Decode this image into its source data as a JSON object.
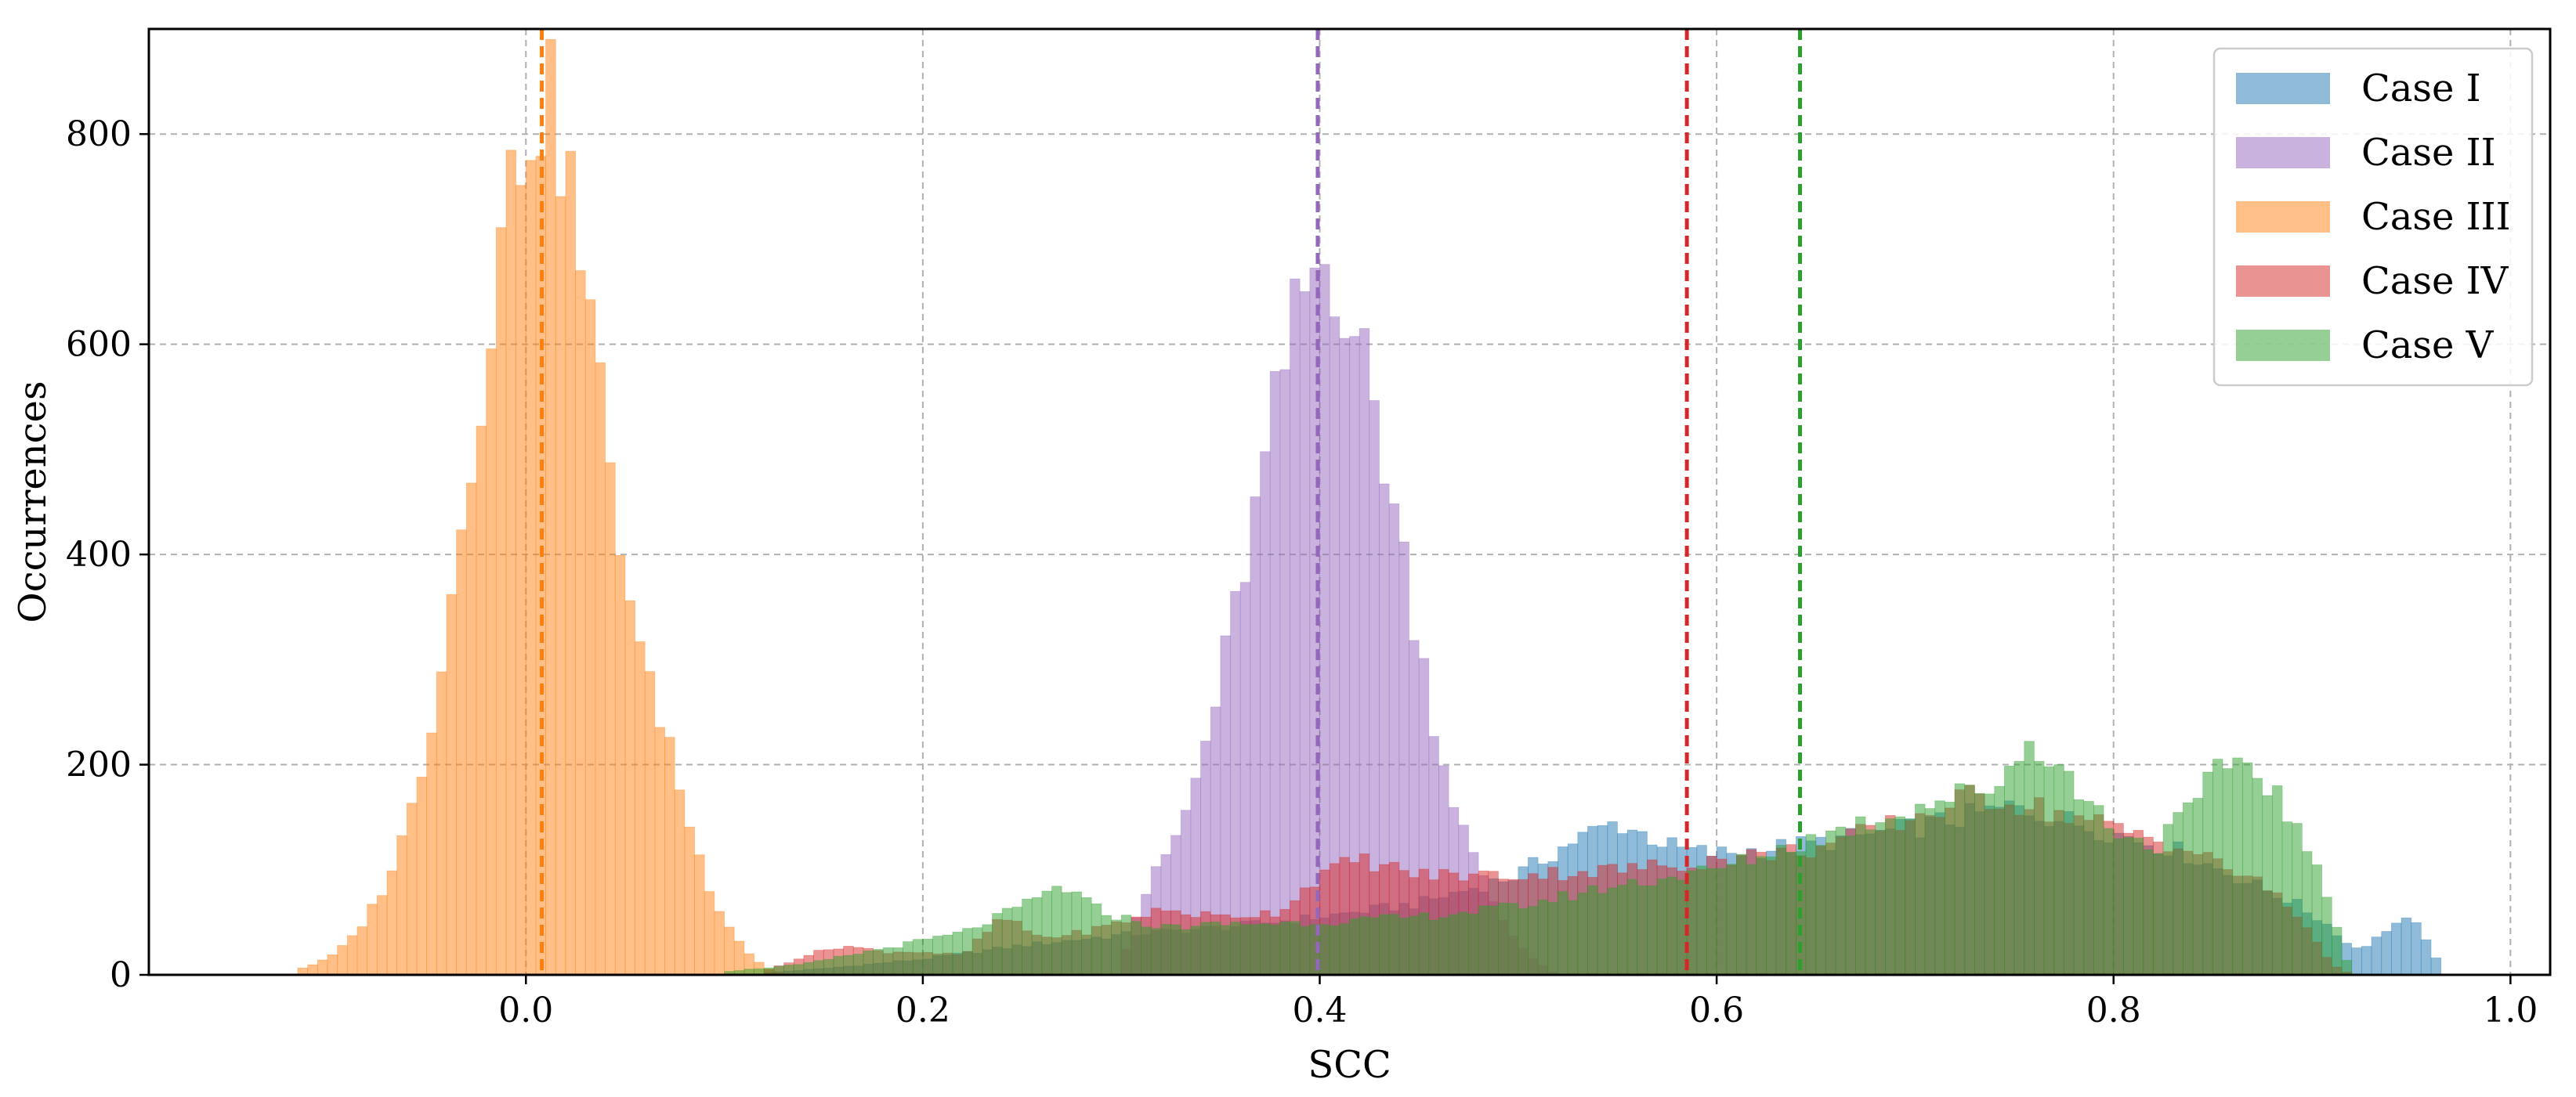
{
  "chart_data": {
    "type": "bar",
    "xlabel": "SCC",
    "ylabel": "Occurrences",
    "xlim": [
      -0.19,
      1.02
    ],
    "ylim": [
      0,
      900
    ],
    "xticks": [
      0.0,
      0.2,
      0.4,
      0.6,
      0.8,
      1.0
    ],
    "xtick_labels": [
      "0.0",
      "0.2",
      "0.4",
      "0.6",
      "0.8",
      "1.0"
    ],
    "yticks": [
      0,
      200,
      400,
      600,
      800
    ],
    "ytick_labels": [
      "0",
      "200",
      "400",
      "600",
      "800"
    ],
    "grid": true,
    "legend_position": "top-right",
    "bin_width": 0.005,
    "series": [
      {
        "name": "Case I",
        "color": "#1f77b4",
        "mean_line": null,
        "points": [
          [
            0.12,
            2
          ],
          [
            0.15,
            6
          ],
          [
            0.2,
            15
          ],
          [
            0.25,
            28
          ],
          [
            0.3,
            38
          ],
          [
            0.35,
            45
          ],
          [
            0.4,
            55
          ],
          [
            0.45,
            68
          ],
          [
            0.5,
            95
          ],
          [
            0.53,
            130
          ],
          [
            0.55,
            145
          ],
          [
            0.58,
            120
          ],
          [
            0.6,
            115
          ],
          [
            0.65,
            125
          ],
          [
            0.7,
            140
          ],
          [
            0.75,
            160
          ],
          [
            0.8,
            135
          ],
          [
            0.83,
            120
          ],
          [
            0.86,
            95
          ],
          [
            0.89,
            70
          ],
          [
            0.91,
            45
          ],
          [
            0.92,
            25
          ],
          [
            0.93,
            30
          ],
          [
            0.94,
            48
          ],
          [
            0.95,
            52
          ],
          [
            0.96,
            30
          ],
          [
            0.965,
            0
          ]
        ]
      },
      {
        "name": "Case II",
        "color": "#9467bd",
        "mean_line": 0.399,
        "points": [
          [
            0.3,
            12
          ],
          [
            0.31,
            70
          ],
          [
            0.32,
            105
          ],
          [
            0.33,
            140
          ],
          [
            0.34,
            200
          ],
          [
            0.35,
            280
          ],
          [
            0.36,
            370
          ],
          [
            0.37,
            460
          ],
          [
            0.38,
            560
          ],
          [
            0.39,
            640
          ],
          [
            0.4,
            680
          ],
          [
            0.41,
            665
          ],
          [
            0.42,
            600
          ],
          [
            0.43,
            520
          ],
          [
            0.44,
            420
          ],
          [
            0.45,
            320
          ],
          [
            0.46,
            220
          ],
          [
            0.47,
            150
          ],
          [
            0.48,
            100
          ],
          [
            0.49,
            60
          ],
          [
            0.5,
            30
          ],
          [
            0.51,
            12
          ],
          [
            0.52,
            0
          ]
        ]
      },
      {
        "name": "Case III",
        "color": "#ff7f0e",
        "mean_line": 0.008,
        "points": [
          [
            -0.115,
            5
          ],
          [
            -0.1,
            15
          ],
          [
            -0.09,
            30
          ],
          [
            -0.08,
            55
          ],
          [
            -0.07,
            90
          ],
          [
            -0.06,
            140
          ],
          [
            -0.05,
            220
          ],
          [
            -0.04,
            330
          ],
          [
            -0.03,
            460
          ],
          [
            -0.02,
            600
          ],
          [
            -0.01,
            730
          ],
          [
            0.0,
            810
          ],
          [
            0.01,
            840
          ],
          [
            0.02,
            780
          ],
          [
            0.03,
            650
          ],
          [
            0.04,
            520
          ],
          [
            0.05,
            390
          ],
          [
            0.06,
            280
          ],
          [
            0.07,
            240
          ],
          [
            0.08,
            160
          ],
          [
            0.09,
            95
          ],
          [
            0.1,
            55
          ],
          [
            0.11,
            25
          ],
          [
            0.12,
            8
          ],
          [
            0.13,
            0
          ]
        ]
      },
      {
        "name": "Case IV",
        "color": "#d62728",
        "mean_line": 0.585,
        "points": [
          [
            0.12,
            3
          ],
          [
            0.14,
            18
          ],
          [
            0.16,
            28
          ],
          [
            0.18,
            22
          ],
          [
            0.2,
            22
          ],
          [
            0.22,
            18
          ],
          [
            0.24,
            55
          ],
          [
            0.26,
            35
          ],
          [
            0.28,
            40
          ],
          [
            0.3,
            50
          ],
          [
            0.32,
            62
          ],
          [
            0.35,
            55
          ],
          [
            0.38,
            60
          ],
          [
            0.4,
            95
          ],
          [
            0.42,
            110
          ],
          [
            0.45,
            95
          ],
          [
            0.5,
            95
          ],
          [
            0.55,
            100
          ],
          [
            0.58,
            105
          ],
          [
            0.6,
            110
          ],
          [
            0.65,
            120
          ],
          [
            0.7,
            150
          ],
          [
            0.73,
            170
          ],
          [
            0.75,
            165
          ],
          [
            0.8,
            140
          ],
          [
            0.83,
            125
          ],
          [
            0.86,
            100
          ],
          [
            0.88,
            80
          ],
          [
            0.9,
            40
          ],
          [
            0.91,
            10
          ],
          [
            0.92,
            0
          ]
        ]
      },
      {
        "name": "Case V",
        "color": "#2ca02c",
        "mean_line": 0.642,
        "points": [
          [
            0.1,
            3
          ],
          [
            0.14,
            10
          ],
          [
            0.18,
            25
          ],
          [
            0.22,
            40
          ],
          [
            0.25,
            65
          ],
          [
            0.27,
            85
          ],
          [
            0.29,
            60
          ],
          [
            0.32,
            45
          ],
          [
            0.35,
            48
          ],
          [
            0.4,
            50
          ],
          [
            0.45,
            55
          ],
          [
            0.5,
            65
          ],
          [
            0.55,
            85
          ],
          [
            0.6,
            100
          ],
          [
            0.65,
            130
          ],
          [
            0.7,
            160
          ],
          [
            0.74,
            180
          ],
          [
            0.76,
            225
          ],
          [
            0.78,
            180
          ],
          [
            0.8,
            140
          ],
          [
            0.82,
            120
          ],
          [
            0.84,
            160
          ],
          [
            0.86,
            210
          ],
          [
            0.88,
            180
          ],
          [
            0.9,
            110
          ],
          [
            0.91,
            60
          ],
          [
            0.92,
            0
          ]
        ]
      }
    ]
  }
}
